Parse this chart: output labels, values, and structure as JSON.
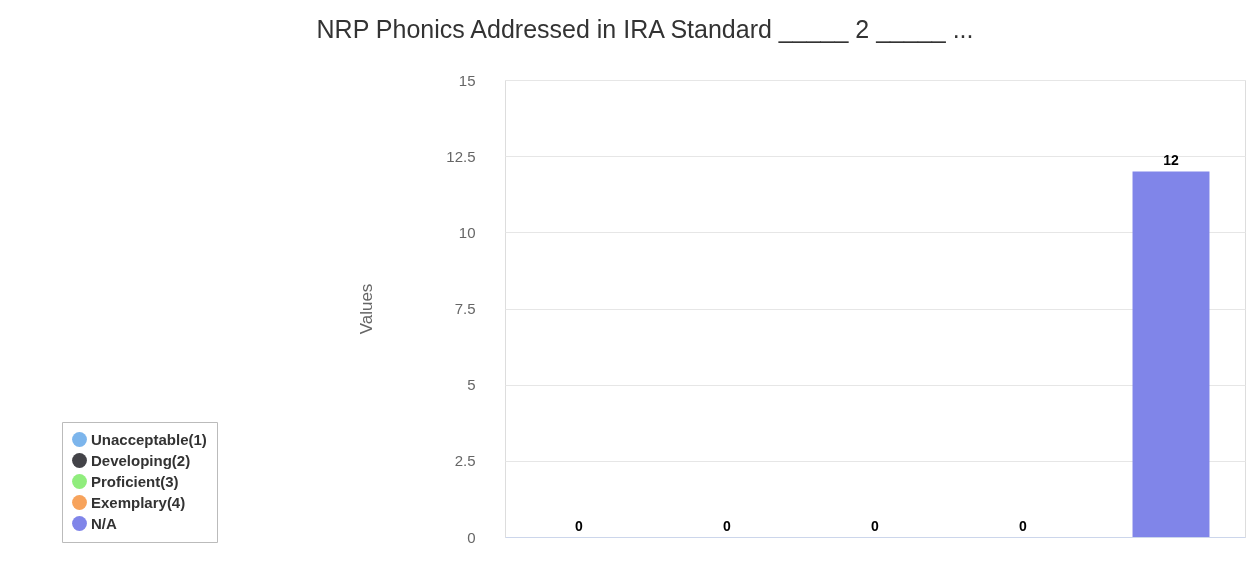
{
  "chart_data": {
    "type": "bar",
    "title": "NRP Phonics Addressed in IRA Standard _____ 2 _____ ...",
    "ylabel": "Values",
    "categories": [
      null,
      null,
      null,
      null,
      null
    ],
    "series": [
      {
        "name": "Unacceptable(1)",
        "color": "#7cb5ec",
        "values": [
          0,
          null,
          null,
          null,
          null
        ]
      },
      {
        "name": "Developing(2)",
        "color": "#434348",
        "values": [
          null,
          0,
          null,
          null,
          null
        ]
      },
      {
        "name": "Proficient(3)",
        "color": "#90ed7d",
        "values": [
          null,
          null,
          0,
          null,
          null
        ]
      },
      {
        "name": "Exemplary(4)",
        "color": "#f7a35c",
        "values": [
          null,
          null,
          null,
          0,
          null
        ]
      },
      {
        "name": "N/A",
        "color": "#8085e9",
        "values": [
          null,
          null,
          null,
          null,
          12
        ]
      }
    ],
    "ylim": [
      0,
      15
    ],
    "yticks": [
      0,
      2.5,
      5,
      7.5,
      10,
      12.5,
      15
    ],
    "grid": "y",
    "legend": "bottom left",
    "data_labels": true,
    "tick_labels": "y"
  }
}
